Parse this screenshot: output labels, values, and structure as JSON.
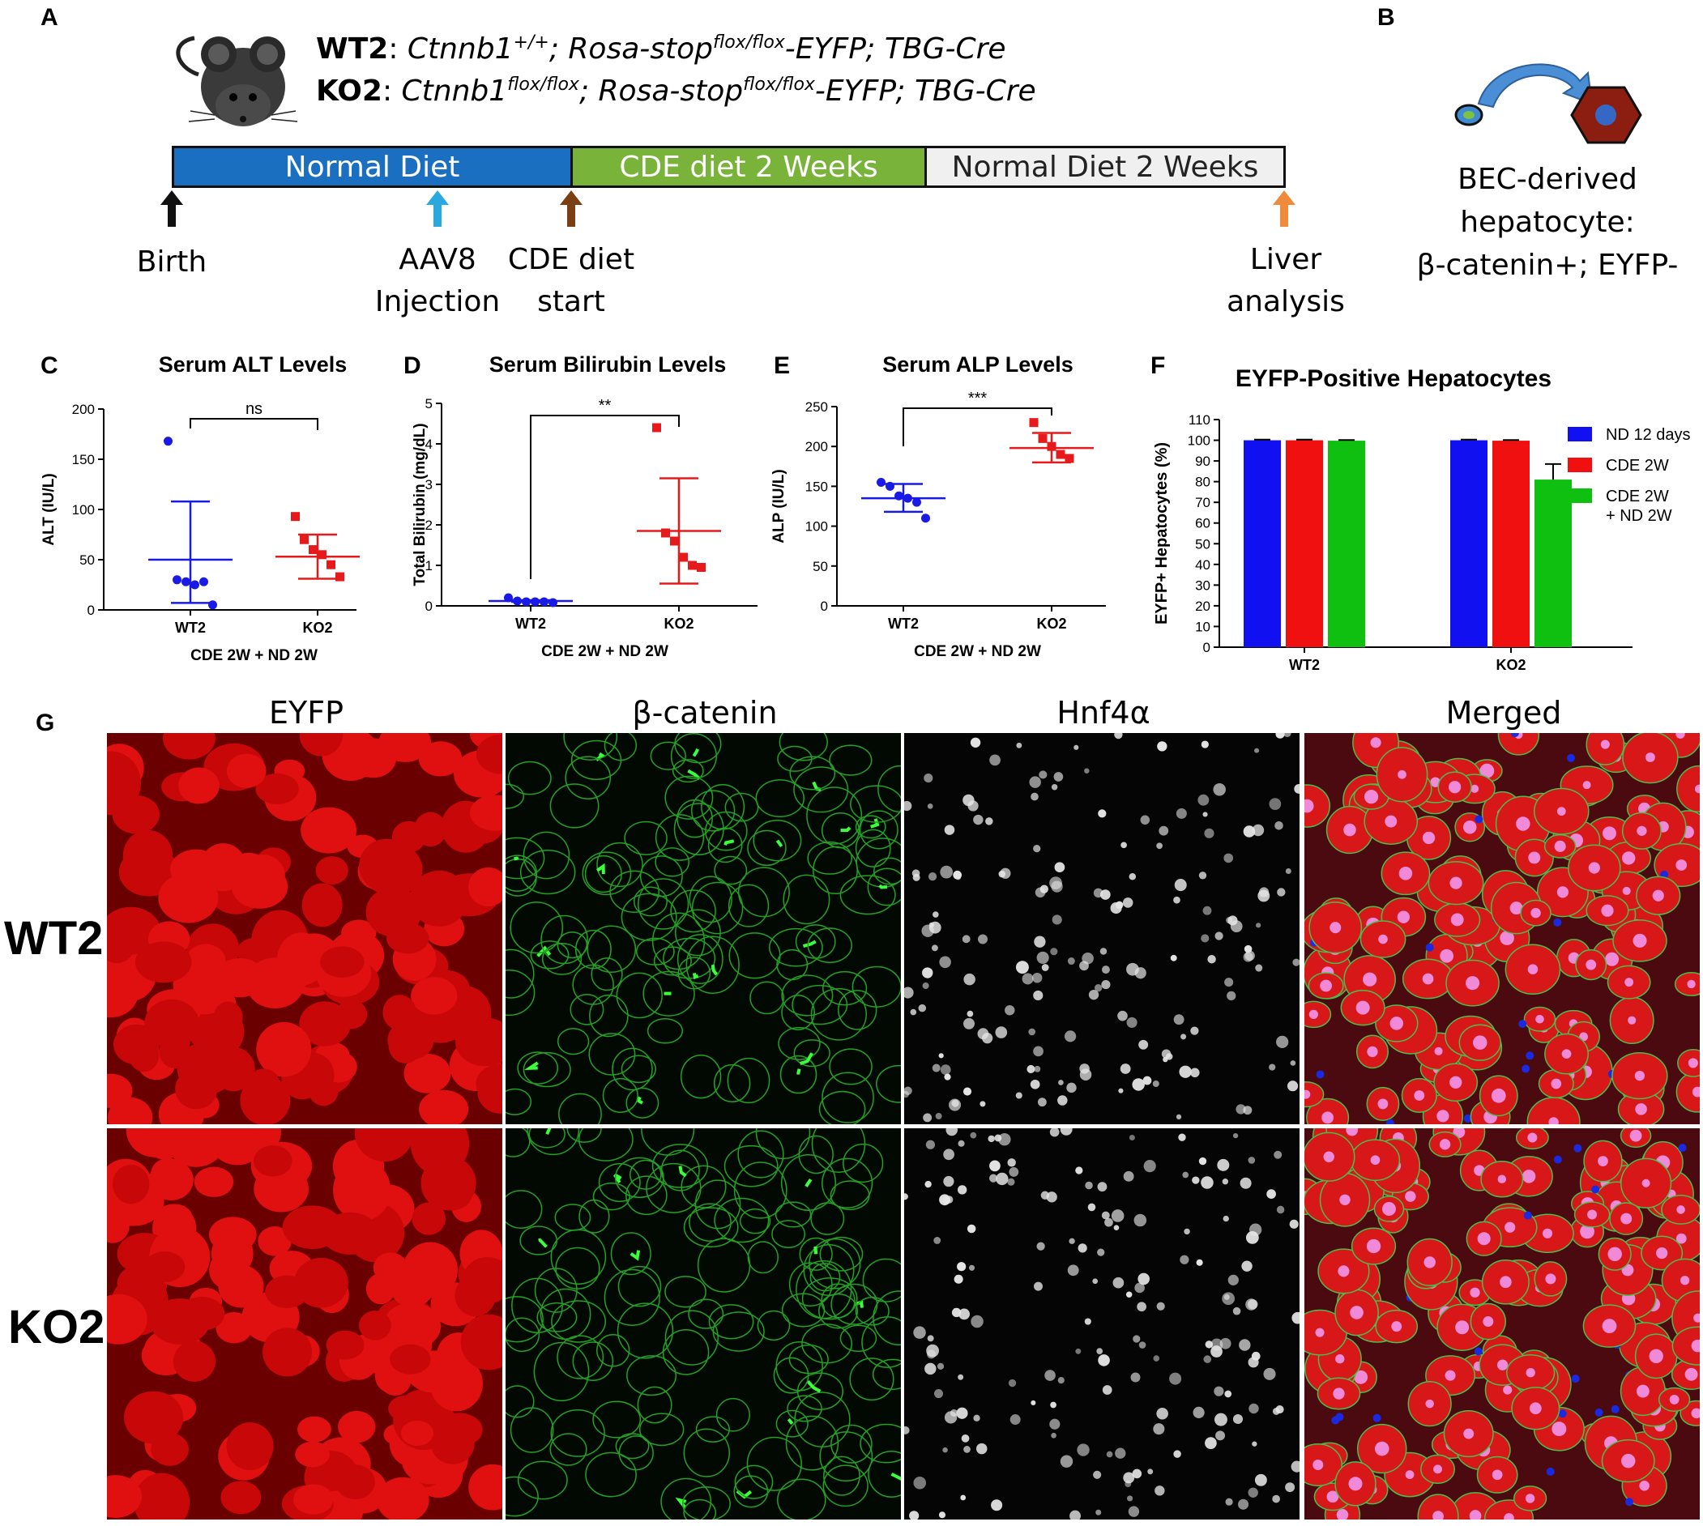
{
  "panel_letters": {
    "A": "A",
    "B": "B",
    "C": "C",
    "D": "D",
    "E": "E",
    "F": "F",
    "G": "G"
  },
  "genotypes": {
    "wt2_name": "WT2",
    "wt2_gene": "Ctnnb1",
    "wt2_gene_sup": "+/+",
    "wt2_rosa": "; Rosa-stop",
    "wt2_rosa_sup": "flox/flox",
    "wt2_rest": "-EYFP; TBG-Cre",
    "ko2_name": "KO2",
    "ko2_gene": "Ctnnb1",
    "ko2_gene_sup": "flox/flox",
    "ko2_rosa": "; Rosa-stop",
    "ko2_rosa_sup": "flox/flox",
    "ko2_rest": "-EYFP; TBG-Cre"
  },
  "timeline": {
    "segments": [
      {
        "label": "Normal Diet",
        "color": "#1b6fc0",
        "text_color": "#ffffff"
      },
      {
        "label": "CDE diet 2 Weeks",
        "color": "#79b33a",
        "text_color": "#ffffff"
      },
      {
        "label": "Normal Diet 2 Weeks",
        "color": "#f0f0f0",
        "text_color": "#222222"
      }
    ],
    "events": [
      {
        "label": "Birth",
        "color": "#111111"
      },
      {
        "label": "AAV8\nInjection",
        "color": "#29a9e0"
      },
      {
        "label": "CDE diet\nstart",
        "color": "#7a3f12"
      },
      {
        "label": "Liver\nanalysis",
        "color": "#ef8b3a"
      }
    ]
  },
  "panel_b": {
    "label": "BEC-derived\nhepatocyte:\nβ-catenin+; EYFP-"
  },
  "chart_data": [
    {
      "type": "scatter",
      "title": "Serum ALT Levels",
      "ylabel": "ALT (IU/L)",
      "xlabel": "CDE 2W + ND 2W",
      "ylim": [
        0,
        200
      ],
      "yticks": [
        0,
        50,
        100,
        150,
        200
      ],
      "categories": [
        "WT2",
        "KO2"
      ],
      "significance": "ns",
      "groups": [
        {
          "name": "WT2",
          "color": "#1a1ae6",
          "marker": "circle",
          "points": [
            168,
            30,
            28,
            25,
            28,
            5
          ],
          "mean": 50,
          "sd": [
            7,
            108
          ]
        },
        {
          "name": "KO2",
          "color": "#e61a1a",
          "marker": "square",
          "points": [
            93,
            70,
            60,
            55,
            45,
            33
          ],
          "mean": 53,
          "sd": [
            31,
            75
          ]
        }
      ]
    },
    {
      "type": "scatter",
      "title": "Serum Bilirubin Levels",
      "ylabel": "Total Bilirubin (mg/dL)",
      "xlabel": "CDE 2W + ND 2W",
      "ylim": [
        0,
        5
      ],
      "yticks": [
        0,
        1,
        2,
        3,
        4,
        5
      ],
      "categories": [
        "WT2",
        "KO2"
      ],
      "significance": "**",
      "groups": [
        {
          "name": "WT2",
          "color": "#1a1ae6",
          "marker": "circle",
          "points": [
            0.2,
            0.12,
            0.1,
            0.1,
            0.1,
            0.08
          ],
          "mean": 0.12,
          "sd": [
            0.1,
            0.14
          ]
        },
        {
          "name": "KO2",
          "color": "#e61a1a",
          "marker": "square",
          "points": [
            4.4,
            1.8,
            1.6,
            1.2,
            1.0,
            0.95
          ],
          "mean": 1.85,
          "sd": [
            0.55,
            3.15
          ]
        }
      ]
    },
    {
      "type": "scatter",
      "title": "Serum ALP Levels",
      "ylabel": "ALP (IU/L)",
      "xlabel": "CDE 2W + ND 2W",
      "ylim": [
        0,
        250
      ],
      "yticks": [
        0,
        50,
        100,
        150,
        200,
        250
      ],
      "categories": [
        "WT2",
        "KO2"
      ],
      "significance": "***",
      "groups": [
        {
          "name": "WT2",
          "color": "#1a1ae6",
          "marker": "circle",
          "points": [
            155,
            150,
            138,
            135,
            130,
            110
          ],
          "mean": 135,
          "sd": [
            118,
            153
          ]
        },
        {
          "name": "KO2",
          "color": "#e61a1a",
          "marker": "square",
          "points": [
            230,
            210,
            200,
            190,
            185
          ],
          "mean": 198,
          "sd": [
            180,
            217
          ]
        }
      ]
    },
    {
      "type": "bar",
      "title": "EYFP-Positive Hepatocytes",
      "ylabel": "EYFP+ Hepatocytes (%)",
      "ylim": [
        0,
        110
      ],
      "yticks": [
        0,
        10,
        20,
        30,
        40,
        50,
        60,
        70,
        80,
        90,
        100,
        110
      ],
      "categories": [
        "WT2",
        "KO2"
      ],
      "series": [
        {
          "name": "ND 12 days",
          "color": "#1010f0",
          "values": [
            100,
            100
          ],
          "err": [
            0.3,
            0.3
          ]
        },
        {
          "name": "CDE 2W",
          "color": "#f01010",
          "values": [
            100,
            99.8
          ],
          "err": [
            0.3,
            0.3
          ]
        },
        {
          "name": "CDE 2W\n+ ND 2W",
          "color": "#10c010",
          "values": [
            99.8,
            81
          ],
          "err": [
            0.3,
            7.5
          ]
        }
      ]
    }
  ],
  "panel_g": {
    "columns": [
      "EYFP",
      "β-catenin",
      "Hnf4α",
      "Merged"
    ],
    "rows": [
      "WT2",
      "KO2"
    ]
  }
}
